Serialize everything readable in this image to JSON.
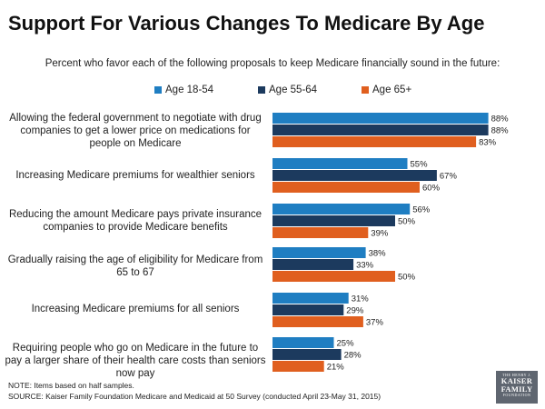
{
  "chart_data": {
    "type": "bar",
    "orientation": "horizontal",
    "title": "Support For Various Changes To Medicare By Age",
    "subtitle": "Percent who favor each of the following proposals to keep Medicare financially sound in the future:",
    "categories": [
      "Allowing the federal government to negotiate with drug companies to get a lower price on medications for people on Medicare",
      "Increasing Medicare premiums for wealthier seniors",
      "Reducing the amount Medicare pays private insurance companies to provide Medicare benefits",
      "Gradually raising the age of eligibility for Medicare from 65 to 67",
      "Increasing Medicare premiums for all seniors",
      "Requiring people who go on Medicare in the future to pay a larger share of their health care costs than seniors now pay"
    ],
    "series": [
      {
        "name": "Age 18-54",
        "color": "#1f7ec2",
        "values": [
          88,
          55,
          56,
          38,
          31,
          25
        ],
        "labels": [
          "88%",
          "55%",
          "56%",
          "38%",
          "31%",
          "25%"
        ]
      },
      {
        "name": "Age 55-64",
        "color": "#1c3a5e",
        "values": [
          88,
          67,
          50,
          33,
          29,
          28
        ],
        "labels": [
          "88%",
          "67%",
          "50%",
          "33%",
          "29%",
          "28%"
        ]
      },
      {
        "name": "Age 65+",
        "color": "#e05f1f",
        "values": [
          83,
          60,
          39,
          50,
          37,
          21
        ],
        "labels": [
          "83%",
          "60%",
          "39%",
          "50%",
          "37%",
          "21%"
        ]
      }
    ],
    "xlim": [
      0,
      100
    ],
    "legend_position": "top"
  },
  "notes": {
    "note": "NOTE: Items based on half samples.",
    "source": "SOURCE: Kaiser Family Foundation Medicare and Medicaid at 50 Survey (conducted April 23-May 31, 2015)"
  },
  "logo": {
    "line1": "THE HENRY J.",
    "line2": "KAISER",
    "line3": "FAMILY",
    "line4": "FOUNDATION"
  }
}
